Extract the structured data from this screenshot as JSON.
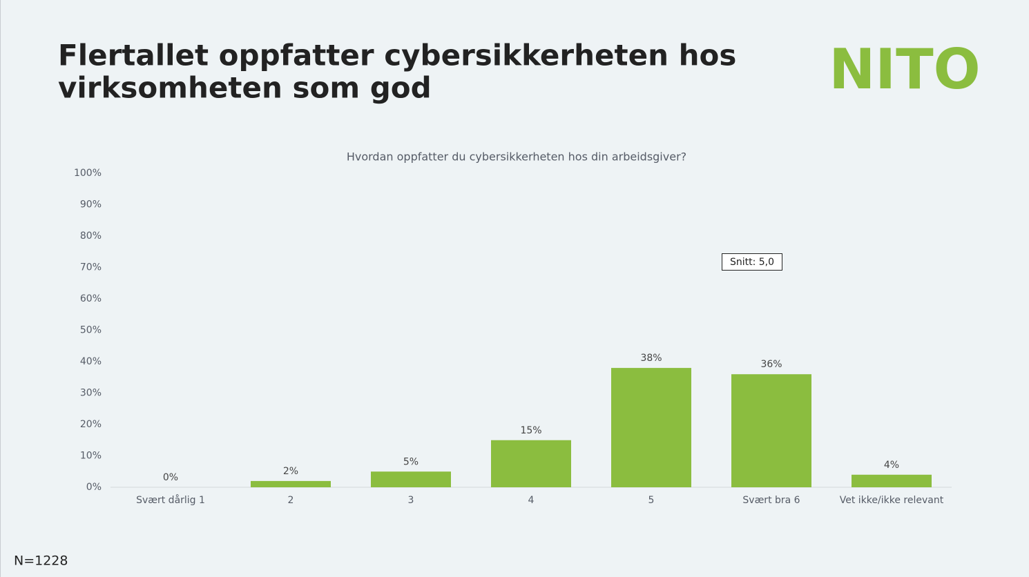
{
  "header": {
    "title": [
      "Flertallet oppfatter cybersikkerheten hos",
      "virksomheten som god"
    ],
    "logo": "NITO"
  },
  "chart_data": {
    "type": "bar",
    "title": "Hvordan oppfatter du cybersikkerheten hos din arbeidsgiver?",
    "categories": [
      "Svært dårlig 1",
      "2",
      "3",
      "4",
      "5",
      "Svært bra 6",
      "Vet ikke/ikke relevant"
    ],
    "values": [
      0,
      2,
      5,
      15,
      38,
      36,
      4
    ],
    "value_labels": [
      "0%",
      "2%",
      "5%",
      "15%",
      "38%",
      "36%",
      "4%"
    ],
    "color": "#8bbd3f",
    "ylim": [
      0,
      100
    ],
    "yticks": [
      {
        "value": 0,
        "label": "0%"
      },
      {
        "value": 10,
        "label": "10%"
      },
      {
        "value": 20,
        "label": "20%"
      },
      {
        "value": 30,
        "label": "30%"
      },
      {
        "value": 40,
        "label": "40%"
      },
      {
        "value": 50,
        "label": "50%"
      },
      {
        "value": 60,
        "label": "60%"
      },
      {
        "value": 70,
        "label": "70%"
      },
      {
        "value": 80,
        "label": "80%"
      },
      {
        "value": 90,
        "label": "90%"
      },
      {
        "value": 100,
        "label": "100%"
      }
    ],
    "grid": false,
    "annotation": "Snitt: 5,0"
  },
  "footer": {
    "note": "N=1228"
  }
}
